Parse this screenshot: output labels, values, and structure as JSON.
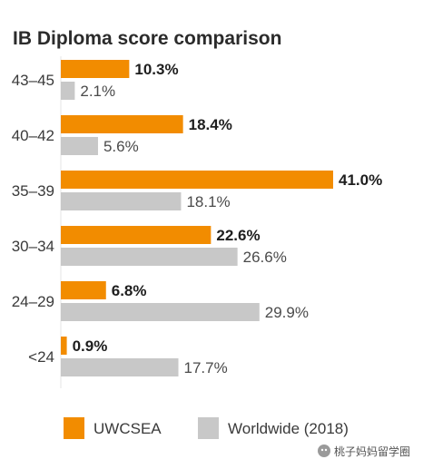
{
  "chart_data": {
    "type": "bar",
    "orientation": "horizontal",
    "title": "IB Diploma score comparison",
    "categories": [
      "43–45",
      "40–42",
      "35–39",
      "30–34",
      "24–29",
      "<24"
    ],
    "series": [
      {
        "name": "UWCSEA",
        "color": "#f28c00",
        "values": [
          10.3,
          18.4,
          41.0,
          22.6,
          6.8,
          0.9
        ],
        "labels": [
          "10.3%",
          "18.4%",
          "41.0%",
          "22.6%",
          "6.8%",
          "0.9%"
        ]
      },
      {
        "name": "Worldwide (2018)",
        "color": "#c8c8c8",
        "values": [
          2.1,
          5.6,
          18.1,
          26.6,
          29.9,
          17.7
        ],
        "labels": [
          "2.1%",
          "5.6%",
          "18.1%",
          "26.6%",
          "29.9%",
          "17.7%"
        ]
      }
    ],
    "xlim": [
      0,
      41.0
    ],
    "grid": false,
    "legend_position": "bottom",
    "xlabel": "",
    "ylabel": ""
  },
  "watermark": {
    "text": "桃子妈妈留学圈",
    "icon": "wechat-icon"
  }
}
